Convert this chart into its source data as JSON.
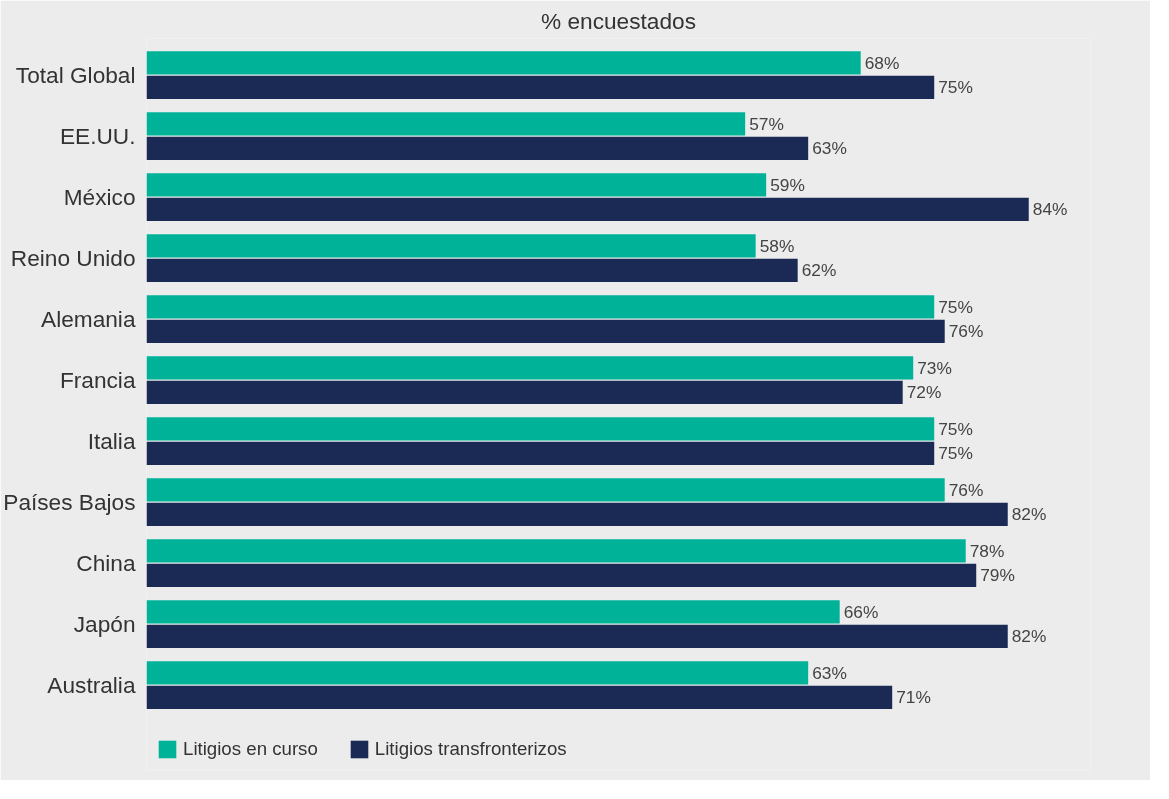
{
  "chart_data": {
    "type": "bar",
    "orientation": "horizontal",
    "title": "% encuestados",
    "categories": [
      "Total Global",
      "EE.UU.",
      "México",
      "Reino Unido",
      "Alemania",
      "Francia",
      "Italia",
      "Países Bajos",
      "China",
      "Japón",
      "Australia"
    ],
    "series": [
      {
        "name": "Litigios en curso",
        "color": "#00b398",
        "values": [
          68,
          57,
          59,
          58,
          75,
          73,
          75,
          76,
          78,
          66,
          63
        ],
        "value_labels": [
          "68%",
          "57%",
          "59%",
          "58%",
          "75%",
          "73%",
          "75%",
          "76%",
          "78%",
          "66%",
          "63%"
        ]
      },
      {
        "name": "Litigios transfronterizos",
        "color": "#1b2a55",
        "values": [
          75,
          63,
          84,
          62,
          76,
          72,
          75,
          82,
          79,
          82,
          71
        ],
        "value_labels": [
          "75%",
          "63%",
          "84%",
          "62%",
          "76%",
          "72%",
          "75%",
          "82%",
          "79%",
          "82%",
          "71%"
        ]
      }
    ],
    "legend": "bottom",
    "grid": false
  }
}
